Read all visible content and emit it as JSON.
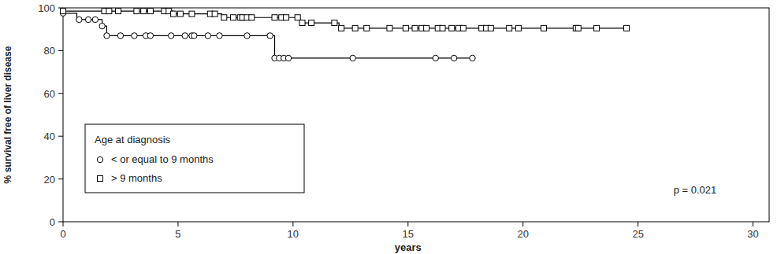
{
  "chart_data": {
    "type": "step",
    "x_label": "years",
    "y_label": "% survival free of liver disease",
    "legend_title": "Age at diagnosis",
    "annotation": "p = 0.021",
    "xlim": [
      0,
      30.7
    ],
    "ylim": [
      0,
      100
    ],
    "xticks": [
      0,
      5,
      10,
      15,
      20,
      25,
      30
    ],
    "yticks": [
      0,
      20,
      40,
      60,
      80,
      100
    ],
    "grid": false,
    "legend": "lower left",
    "series": [
      {
        "name": "< or equal to 9 months",
        "color": "#000000",
        "marker": "circle",
        "line_style": "solid",
        "x": [
          0,
          0.6,
          1.7,
          1.9,
          9.2
        ],
        "values": [
          97.5,
          94.5,
          91.5,
          87,
          76.5
        ],
        "censor_x": [
          0,
          0.7,
          1.1,
          1.4,
          1.7,
          1.9,
          2.5,
          3.1,
          3.6,
          3.8,
          4.7,
          5.3,
          5.6,
          5.7,
          6.3,
          6.8,
          8.0,
          9.0,
          9.2,
          9.4,
          9.6,
          9.8,
          12.6,
          16.2,
          17.0,
          17.8
        ],
        "censor_values": [
          97.5,
          94.5,
          94.5,
          94.5,
          91.5,
          87,
          87,
          87,
          87,
          87,
          87,
          87,
          87,
          87,
          87,
          87,
          87,
          87,
          76.5,
          76.5,
          76.5,
          76.5,
          76.5,
          76.5,
          76.5,
          76.5
        ]
      },
      {
        "name": "> 9 months",
        "color": "#000000",
        "marker": "square",
        "line_style": "solid",
        "x": [
          0,
          4.8,
          6.9,
          10.3,
          12.0
        ],
        "values": [
          98.5,
          97.2,
          95.5,
          93,
          90.5
        ],
        "censor_x": [
          0,
          1.8,
          2.0,
          2.4,
          3.2,
          3.5,
          3.8,
          4.4,
          4.6,
          4.8,
          5.1,
          5.6,
          6.4,
          6.6,
          7.0,
          7.4,
          7.7,
          7.8,
          8.0,
          8.2,
          9.2,
          9.5,
          9.7,
          10.2,
          10.4,
          10.8,
          11.8,
          12.1,
          12.7,
          13.2,
          14.2,
          14.9,
          15.3,
          15.6,
          15.8,
          16.3,
          16.5,
          16.9,
          17.2,
          17.4,
          18.2,
          18.4,
          18.6,
          19.4,
          19.8,
          20.9,
          22.3,
          22.4,
          23.2,
          24.5
        ],
        "censor_values": [
          98.5,
          98.5,
          98.5,
          98.5,
          98.5,
          98.5,
          98.5,
          98.5,
          98.5,
          97.2,
          97.2,
          97.2,
          97.2,
          97.2,
          95.5,
          95.5,
          95.5,
          95.5,
          95.5,
          95.5,
          95.5,
          95.5,
          95.5,
          95.5,
          93,
          93,
          93,
          90.5,
          90.5,
          90.5,
          90.5,
          90.5,
          90.5,
          90.5,
          90.5,
          90.5,
          90.5,
          90.5,
          90.5,
          90.5,
          90.5,
          90.5,
          90.5,
          90.5,
          90.5,
          90.5,
          90.5,
          90.5,
          90.5,
          90.5
        ]
      }
    ]
  }
}
